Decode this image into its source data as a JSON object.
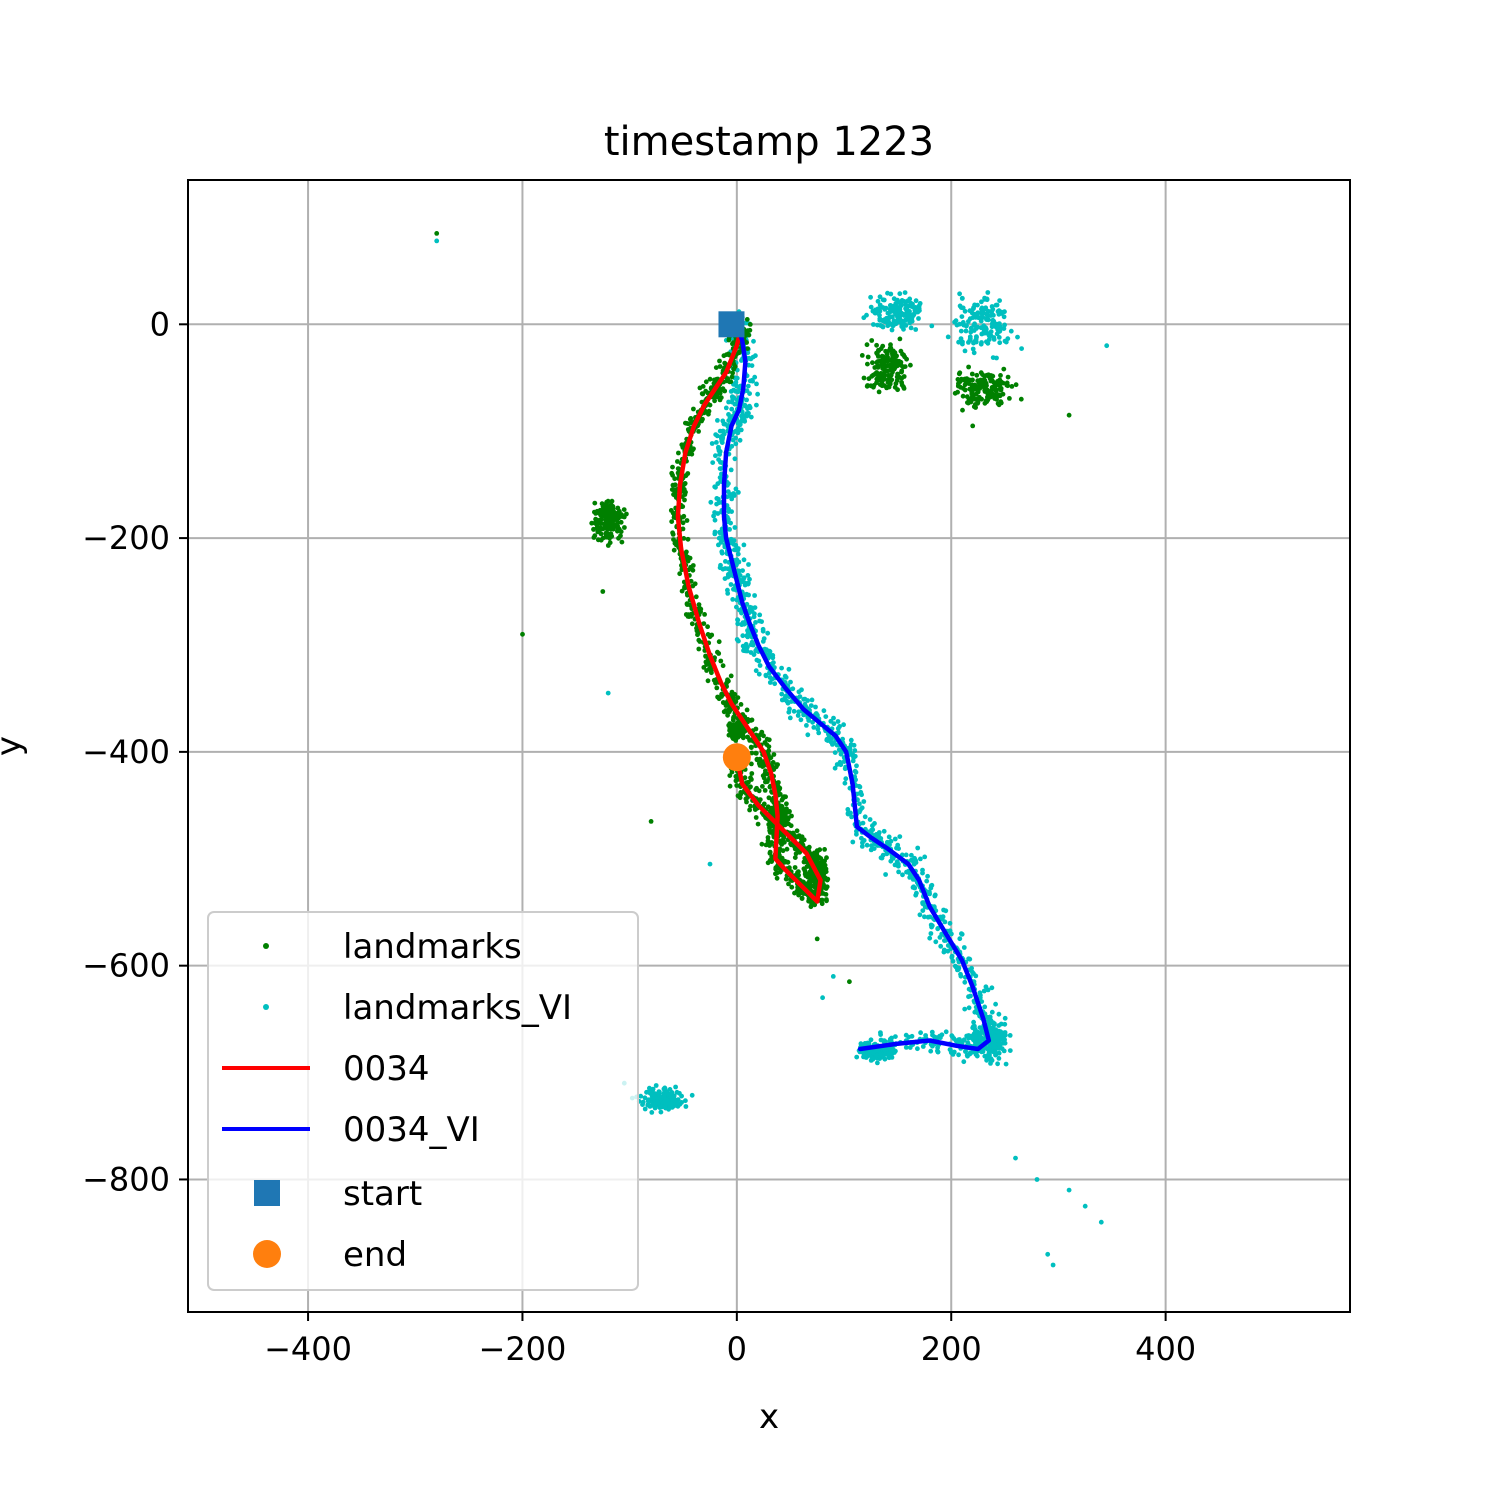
{
  "chart_data": {
    "type": "scatter",
    "title": "timestamp 1223",
    "xlabel": "x",
    "ylabel": "y",
    "xlim": [
      -512,
      572
    ],
    "ylim": [
      -924,
      135
    ],
    "xticks": [
      -400,
      -200,
      0,
      200,
      400
    ],
    "yticks": [
      0,
      -200,
      -400,
      -600,
      -800
    ],
    "xtick_labels": [
      "−400",
      "−200",
      "0",
      "200",
      "400"
    ],
    "ytick_labels": [
      "0",
      "−200",
      "−400",
      "−600",
      "−800"
    ],
    "grid": true,
    "legend_position": "lower-left",
    "series": [
      {
        "name": "landmarks",
        "kind": "points",
        "color": "#008000"
      },
      {
        "name": "landmarks_VI",
        "kind": "points",
        "color": "#00bfbf"
      },
      {
        "name": "0034",
        "kind": "line",
        "color": "#ff0000",
        "x": [
          5,
          0,
          -10,
          -20,
          -30,
          -40,
          -48,
          -53,
          -55,
          -52,
          -45,
          -35,
          -25,
          -15,
          -5,
          5,
          15,
          25,
          32,
          36,
          38,
          37,
          36,
          45,
          55,
          65,
          75,
          78,
          65,
          50,
          35,
          20,
          5,
          0
        ],
        "y": [
          0,
          -20,
          -45,
          -60,
          -75,
          -95,
          -120,
          -150,
          -180,
          -210,
          -245,
          -280,
          -310,
          -335,
          -355,
          -370,
          -385,
          -400,
          -420,
          -440,
          -460,
          -480,
          -500,
          -510,
          -520,
          -530,
          -540,
          -520,
          -495,
          -480,
          -465,
          -450,
          -430,
          -405
        ]
      },
      {
        "name": "0034_VI",
        "kind": "line",
        "color": "#0000ff",
        "x": [
          0,
          5,
          8,
          6,
          2,
          -5,
          -10,
          -12,
          -12,
          -10,
          -5,
          0,
          5,
          12,
          20,
          30,
          45,
          62,
          80,
          92,
          102,
          108,
          112,
          125,
          140,
          160,
          170,
          180,
          195,
          210,
          220,
          230,
          235,
          225,
          205,
          180,
          150,
          115
        ],
        "y": [
          0,
          -15,
          -35,
          -60,
          -80,
          -95,
          -120,
          -150,
          -180,
          -200,
          -220,
          -240,
          -260,
          -280,
          -300,
          -320,
          -340,
          -360,
          -375,
          -385,
          -400,
          -430,
          -470,
          -480,
          -490,
          -505,
          -520,
          -545,
          -570,
          -595,
          -620,
          -650,
          -670,
          -678,
          -675,
          -670,
          -673,
          -678
        ]
      },
      {
        "name": "start",
        "kind": "marker",
        "color": "#1f77b4",
        "x": [
          -5
        ],
        "y": [
          0
        ]
      },
      {
        "name": "end",
        "kind": "marker",
        "color": "#ff7f0e",
        "x": [
          0
        ],
        "y": [
          -405
        ]
      }
    ],
    "landmark_clusters": {
      "landmarks": [
        {
          "x": 0,
          "y": -380,
          "sx": 10,
          "sy": 10,
          "n": 150
        },
        {
          "x": 40,
          "y": -460,
          "sx": 12,
          "sy": 12,
          "n": 150
        },
        {
          "x": 75,
          "y": -510,
          "sx": 14,
          "sy": 24,
          "n": 150
        },
        {
          "x": -120,
          "y": -185,
          "sx": 20,
          "sy": 30,
          "n": 150
        },
        {
          "x": 140,
          "y": -40,
          "sx": 30,
          "sy": 30,
          "n": 150
        },
        {
          "x": 230,
          "y": -60,
          "sx": 40,
          "sy": 25,
          "n": 150
        }
      ],
      "landmarks_VI": [
        {
          "x": 130,
          "y": -680,
          "sx": 25,
          "sy": 10,
          "n": 150
        },
        {
          "x": 240,
          "y": -670,
          "sx": 20,
          "sy": 30,
          "n": 150
        },
        {
          "x": -70,
          "y": -725,
          "sx": 30,
          "sy": 15,
          "n": 150
        },
        {
          "x": 150,
          "y": 10,
          "sx": 35,
          "sy": 25,
          "n": 150
        },
        {
          "x": 230,
          "y": 0,
          "sx": 40,
          "sy": 40,
          "n": 150
        }
      ]
    },
    "sparse_points": {
      "landmarks": [
        [
          -280,
          85
        ],
        [
          -200,
          -290
        ],
        [
          -80,
          -465
        ],
        [
          -125,
          -250
        ],
        [
          105,
          -615
        ],
        [
          75,
          -575
        ],
        [
          310,
          -85
        ],
        [
          220,
          -95
        ],
        [
          -10,
          -120
        ]
      ],
      "landmarks_VI": [
        [
          -280,
          78
        ],
        [
          -120,
          -345
        ],
        [
          -25,
          -505
        ],
        [
          90,
          -610
        ],
        [
          80,
          -630
        ],
        [
          345,
          -20
        ],
        [
          310,
          -810
        ],
        [
          325,
          -825
        ],
        [
          340,
          -840
        ],
        [
          290,
          -870
        ],
        [
          295,
          -880
        ],
        [
          280,
          -800
        ],
        [
          260,
          -780
        ],
        [
          -105,
          -710
        ]
      ]
    }
  }
}
